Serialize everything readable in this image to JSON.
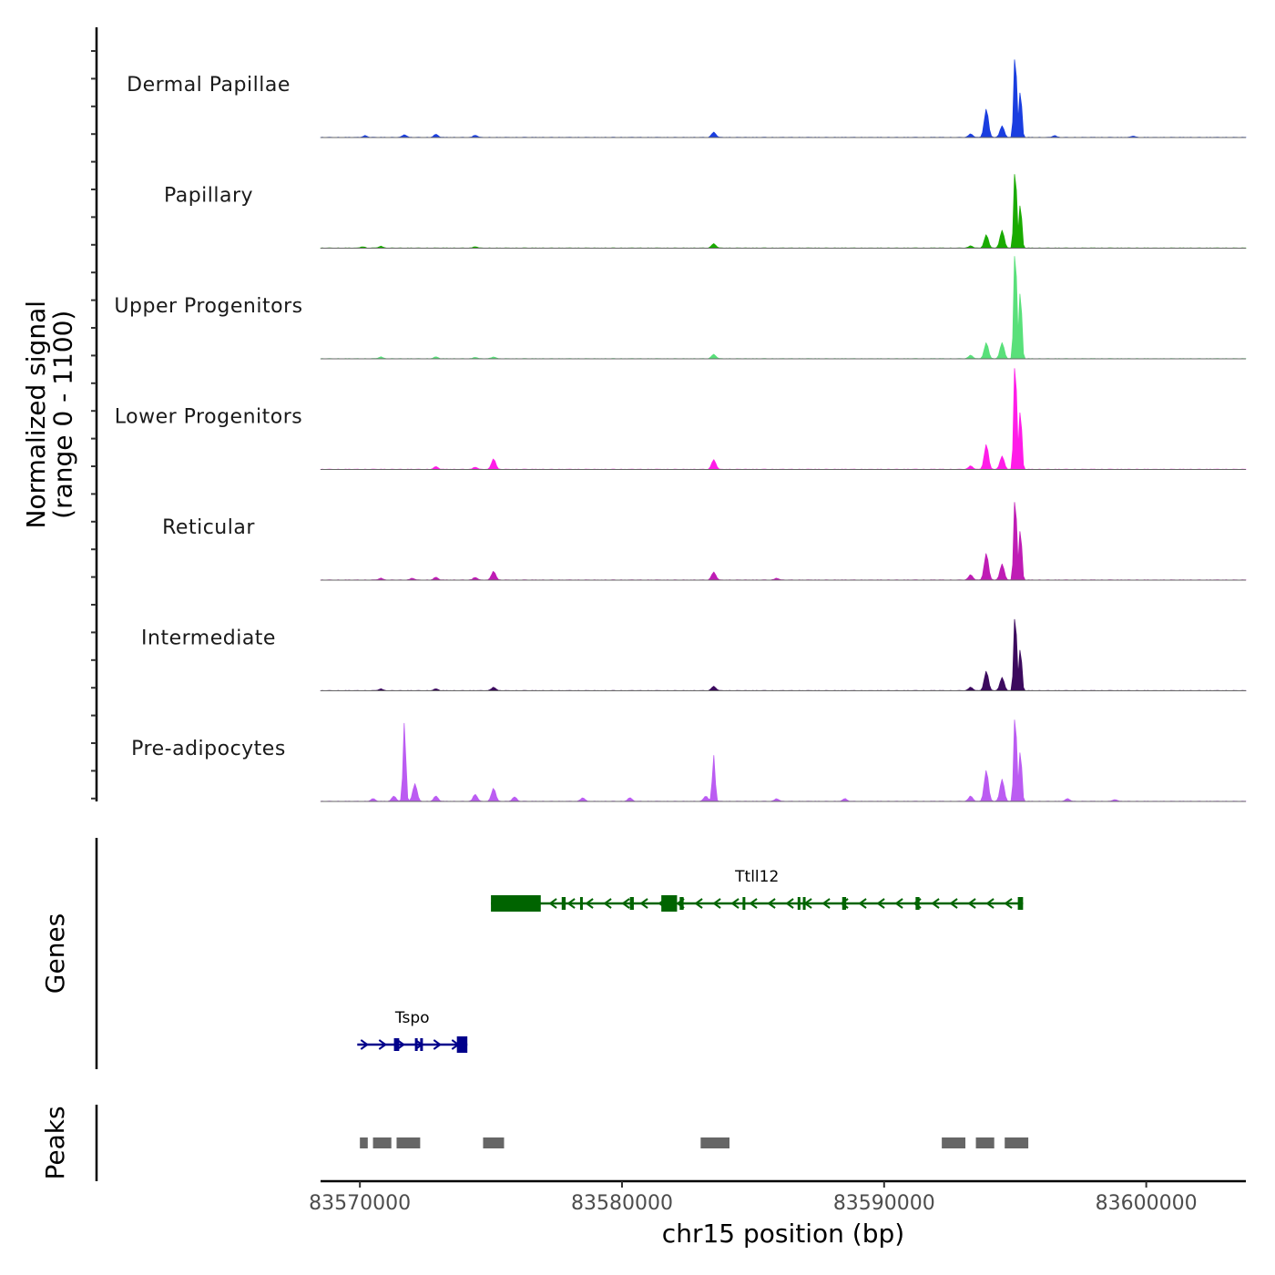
{
  "chart_data": {
    "type": "area",
    "chromosome": "chr15",
    "xlabel": "chr15 position (bp)",
    "xlim": [
      83568500,
      83603800
    ],
    "xticks": [
      83570000,
      83580000,
      83590000,
      83600000
    ],
    "xtick_labels": [
      "83570000",
      "83580000",
      "83590000",
      "83600000"
    ],
    "coverage": {
      "ylabel_line1": "Normalized signal",
      "ylabel_line2": "(range 0 - 1100)",
      "ylim": [
        0,
        1100
      ],
      "series": [
        {
          "name": "Dermal Papillae",
          "color": "#1a3ee0",
          "peaks": [
            [
              83570200,
              20
            ],
            [
              83571700,
              30
            ],
            [
              83572900,
              35
            ],
            [
              83574400,
              25
            ],
            [
              83583500,
              60
            ],
            [
              83593300,
              40
            ],
            [
              83593900,
              320
            ],
            [
              83594500,
              130
            ],
            [
              83595000,
              1000
            ],
            [
              83595200,
              550
            ],
            [
              83596500,
              20
            ],
            [
              83599500,
              15
            ]
          ]
        },
        {
          "name": "Papillary",
          "color": "#1aab00",
          "peaks": [
            [
              83570100,
              15
            ],
            [
              83570800,
              20
            ],
            [
              83574400,
              15
            ],
            [
              83583500,
              50
            ],
            [
              83593300,
              25
            ],
            [
              83593900,
              150
            ],
            [
              83594500,
              200
            ],
            [
              83595000,
              950
            ],
            [
              83595200,
              520
            ]
          ]
        },
        {
          "name": "Upper Progenitors",
          "color": "#59e07a",
          "peaks": [
            [
              83570800,
              20
            ],
            [
              83572900,
              20
            ],
            [
              83574400,
              15
            ],
            [
              83575100,
              20
            ],
            [
              83583500,
              50
            ],
            [
              83593300,
              40
            ],
            [
              83593900,
              180
            ],
            [
              83594500,
              180
            ],
            [
              83595000,
              1350
            ],
            [
              83595200,
              800
            ]
          ]
        },
        {
          "name": "Lower Progenitors",
          "color": "#ff1ce8",
          "peaks": [
            [
              83572900,
              30
            ],
            [
              83574400,
              25
            ],
            [
              83575100,
              120
            ],
            [
              83583500,
              110
            ],
            [
              83593300,
              40
            ],
            [
              83593900,
              280
            ],
            [
              83594500,
              150
            ],
            [
              83595000,
              1300
            ],
            [
              83595200,
              700
            ]
          ]
        },
        {
          "name": "Reticular",
          "color": "#bf1cb5",
          "peaks": [
            [
              83570800,
              20
            ],
            [
              83572000,
              20
            ],
            [
              83572900,
              30
            ],
            [
              83574400,
              30
            ],
            [
              83575100,
              100
            ],
            [
              83583500,
              90
            ],
            [
              83585900,
              20
            ],
            [
              83593300,
              60
            ],
            [
              83593900,
              300
            ],
            [
              83594500,
              180
            ],
            [
              83595000,
              1000
            ],
            [
              83595200,
              600
            ]
          ]
        },
        {
          "name": "Intermediate",
          "color": "#3c0a5e",
          "peaks": [
            [
              83570800,
              20
            ],
            [
              83572900,
              20
            ],
            [
              83575100,
              40
            ],
            [
              83583500,
              50
            ],
            [
              83593300,
              40
            ],
            [
              83593900,
              220
            ],
            [
              83594500,
              150
            ],
            [
              83595000,
              920
            ],
            [
              83595200,
              500
            ]
          ]
        },
        {
          "name": "Pre-adipocytes",
          "color": "#bb5cf2",
          "peaks": [
            [
              83570500,
              30
            ],
            [
              83571300,
              60
            ],
            [
              83571700,
              900
            ],
            [
              83572100,
              200
            ],
            [
              83572900,
              60
            ],
            [
              83574400,
              80
            ],
            [
              83575100,
              150
            ],
            [
              83575900,
              50
            ],
            [
              83578500,
              40
            ],
            [
              83580300,
              40
            ],
            [
              83583200,
              60
            ],
            [
              83583500,
              520
            ],
            [
              83585900,
              30
            ],
            [
              83588500,
              30
            ],
            [
              83593300,
              60
            ],
            [
              83593900,
              350
            ],
            [
              83594500,
              250
            ],
            [
              83595000,
              1050
            ],
            [
              83595200,
              600
            ],
            [
              83597000,
              30
            ],
            [
              83598800,
              20
            ]
          ]
        }
      ]
    },
    "genes": {
      "title": "Genes",
      "items": [
        {
          "name": "Ttll12",
          "strand": "-",
          "start": 83575000,
          "end": 83595300,
          "color": "#006400",
          "exons": [
            [
              83575000,
              83576900
            ],
            [
              83577700,
              83577850
            ],
            [
              83578400,
              83578450
            ],
            [
              83580300,
              83580450
            ],
            [
              83581500,
              83582100
            ],
            [
              83582200,
              83582350
            ],
            [
              83584600,
              83584700
            ],
            [
              83586700,
              83586800
            ],
            [
              83586900,
              83587000
            ],
            [
              83588400,
              83588550
            ],
            [
              83591200,
              83591350
            ],
            [
              83595100,
              83595300
            ]
          ]
        },
        {
          "name": "Tspo",
          "strand": "+",
          "start": 83569900,
          "end": 83574100,
          "color": "#00008b",
          "exons": [
            [
              83571300,
              83571500
            ],
            [
              83572100,
              83572200
            ],
            [
              83572300,
              83572350
            ],
            [
              83573700,
              83574100
            ]
          ]
        }
      ]
    },
    "peaks": {
      "title": "Peaks",
      "color": "#666666",
      "regions": [
        [
          83570000,
          83570300
        ],
        [
          83570500,
          83571200
        ],
        [
          83571400,
          83572300
        ],
        [
          83574700,
          83575500
        ],
        [
          83583000,
          83584100
        ],
        [
          83592200,
          83593100
        ],
        [
          83593500,
          83594200
        ],
        [
          83594600,
          83595500
        ]
      ]
    }
  }
}
